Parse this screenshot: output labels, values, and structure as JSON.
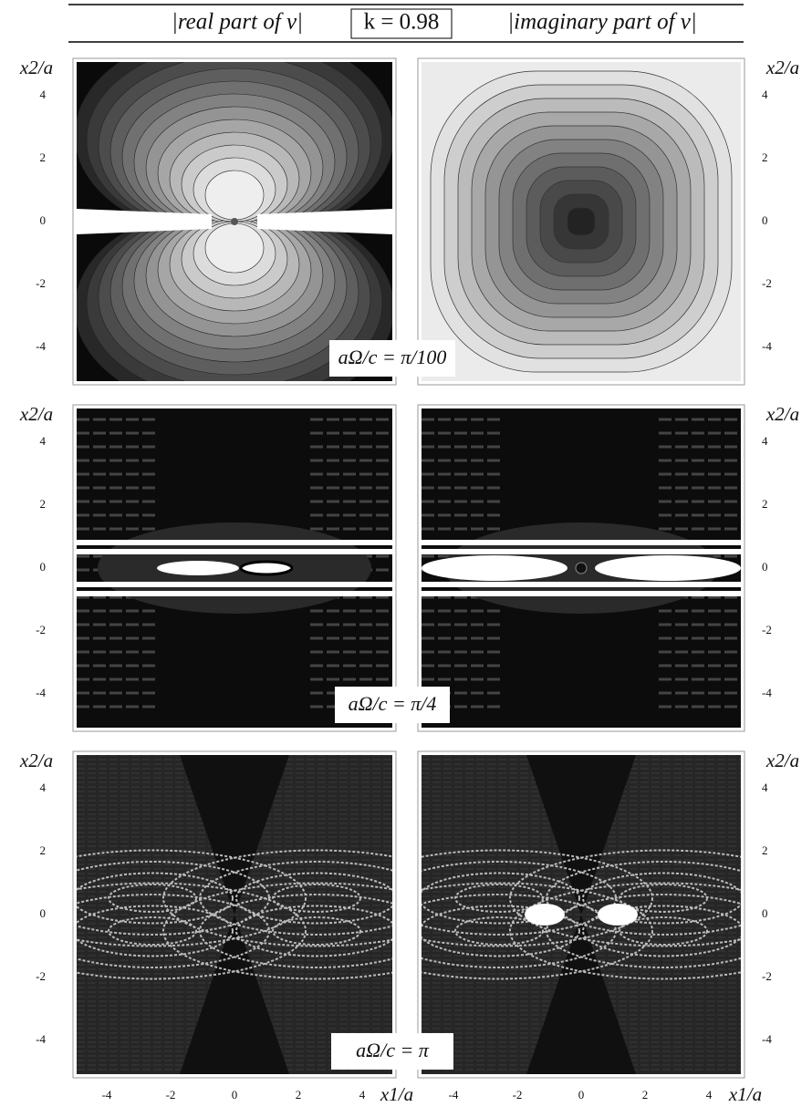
{
  "header": {
    "left": "|real part of v|",
    "k_label": "k = 0.98",
    "right": "|imaginary part of v|"
  },
  "y_axis_label": "x2/a",
  "x_axis_label": "x1/a",
  "y_ticks": [
    "4",
    "2",
    "0",
    "-2",
    "-4"
  ],
  "x_ticks": [
    "-4",
    "-2",
    "0",
    "2",
    "4"
  ],
  "rows": [
    {
      "label": "aΩ/c = π/100"
    },
    {
      "label": "aΩ/c = π/4"
    },
    {
      "label": "aΩ/c = π"
    }
  ]
}
